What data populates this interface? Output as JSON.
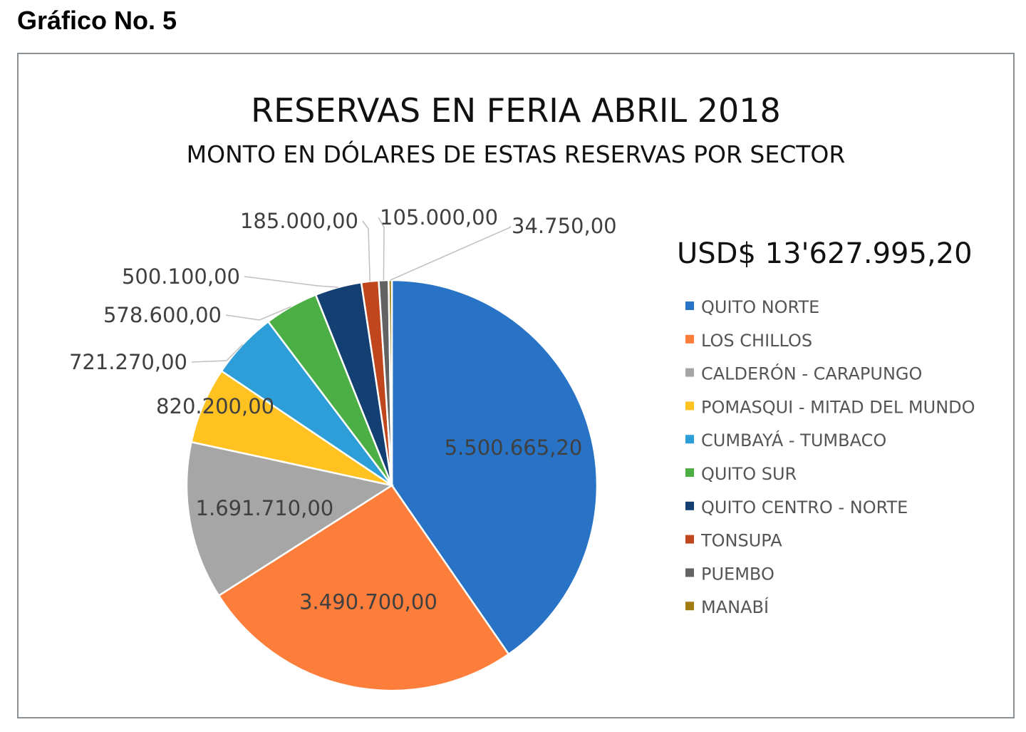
{
  "heading": "Gráfico No. 5",
  "chart_data": {
    "type": "pie",
    "title": "RESERVAS EN FERIA ABRIL 2018",
    "subtitle": "MONTO EN DÓLARES DE ESTAS RESERVAS POR SECTOR",
    "total_label": "USD$ 13'627.995,20",
    "legend_position": "right",
    "slices": [
      {
        "name": "QUITO NORTE",
        "value": 5500665.2,
        "label": "5.500.665,20",
        "color": "#2873c6"
      },
      {
        "name": "LOS CHILLOS",
        "value": 3490700.0,
        "label": "3.490.700,00",
        "color": "#fd7e3b"
      },
      {
        "name": "CALDERÓN - CARAPUNGO",
        "value": 1691710.0,
        "label": "1.691.710,00",
        "color": "#a6a6a6"
      },
      {
        "name": "POMASQUI - MITAD DEL MUNDO",
        "value": 820200.0,
        "label": "820.200,00",
        "color": "#ffc220"
      },
      {
        "name": "CUMBAYÁ - TUMBACO",
        "value": 721270.0,
        "label": "721.270,00",
        "color": "#2e9ed8"
      },
      {
        "name": "QUITO SUR",
        "value": 578600.0,
        "label": "578.600,00",
        "color": "#4caf45"
      },
      {
        "name": "QUITO CENTRO - NORTE",
        "value": 500100.0,
        "label": "500.100,00",
        "color": "#133f73"
      },
      {
        "name": "TONSUPA",
        "value": 185000.0,
        "label": "185.000,00",
        "color": "#c0461d"
      },
      {
        "name": "PUEMBO",
        "value": 105000.0,
        "label": "105.000,00",
        "color": "#636363"
      },
      {
        "name": "MANABÍ",
        "value": 34750.0,
        "label": "34.750,00",
        "color": "#a17d14"
      }
    ]
  }
}
